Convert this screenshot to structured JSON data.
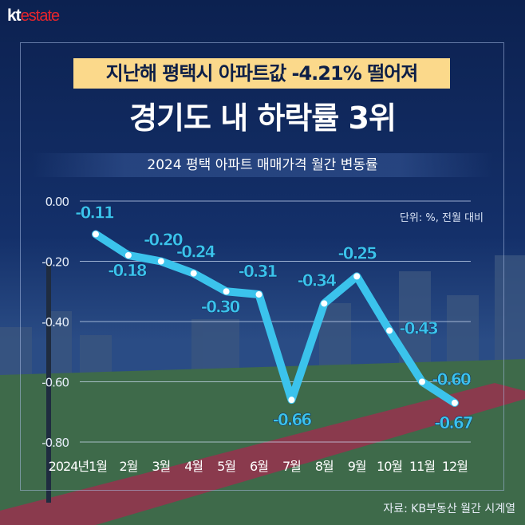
{
  "logo": {
    "kt": "kt",
    "estate": "estate"
  },
  "headline": {
    "line1": "지난해 평택시 아파트값 -4.21% 떨어져",
    "line2": "경기도 내 하락률 3위"
  },
  "unit_note": "단위: %, 전월 대비",
  "source": "자료: KB부동산 월간 시계열",
  "colors": {
    "line": "#3bc3ec",
    "navy": "#0d2350",
    "highlight": "#fbd98b"
  },
  "chart_data": {
    "type": "line",
    "title": "2024 평택 아파트 매매가격 월간 변동률",
    "xlabel": "",
    "ylabel": "",
    "categories": [
      "2024년1월",
      "2월",
      "3월",
      "4월",
      "5월",
      "6월",
      "7월",
      "8월",
      "9월",
      "10월",
      "11월",
      "12월"
    ],
    "series": [
      {
        "name": "월간 변동률",
        "values": [
          -0.11,
          -0.18,
          -0.2,
          -0.24,
          -0.3,
          -0.31,
          -0.66,
          -0.34,
          -0.25,
          -0.43,
          -0.6,
          -0.67
        ]
      }
    ],
    "data_labels": [
      "-0.11",
      "-0.18",
      "-0.20",
      "-0.24",
      "-0.30",
      "-0.31",
      "-0.66",
      "-0.34",
      "-0.25",
      "-0.43",
      "-0.60",
      "-0.67"
    ],
    "yticks": [
      "0.00",
      "-0.20",
      "-0.40",
      "-0.60",
      "-0.80"
    ],
    "ytick_values": [
      0,
      -0.2,
      -0.4,
      -0.6,
      -0.8
    ],
    "ylim": [
      -0.8,
      0
    ],
    "grid": true,
    "legend": "none"
  }
}
